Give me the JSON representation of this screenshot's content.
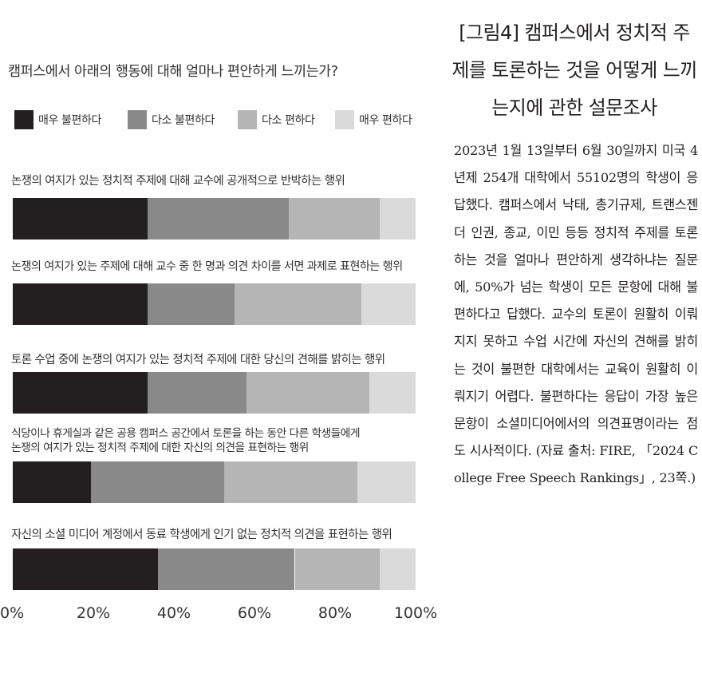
{
  "chart_data": {
    "type": "bar",
    "orientation": "horizontal",
    "stacked": true,
    "title": "캠퍼스에서 아래의 행동에 대해 얼마나 편안하게 느끼는가?",
    "xlim": [
      0,
      100
    ],
    "x_ticks": [
      "0%",
      "20%",
      "40%",
      "60%",
      "80%",
      "100%"
    ],
    "grid": false,
    "legend_position": "top",
    "categories": [
      "논쟁의 여지가 있는 정치적 주제에 대해 교수에 공개적으로 반박하는 행위",
      "논쟁의 여지가 있는 주제에 대해 교수 중 한 명과 의견 차이를 서면 과제로 표현하는 행위",
      "토론 수업 중에 논쟁의 여지가 있는 정치적 주제에 대한 당신의 견해를 밝히는 행위",
      "식당이나 휴게실과 같은 공용 캠퍼스 공간에서 토론을 하는 동안 다른 학생들에게 논쟁의 여지가 있는 정치적 주제에 대한 자신의 의견을 표현하는 행위",
      "자신의 소셜 미디어 계정에서 동료 학생에게 인기 없는 정치적 의견을 표현하는 행위"
    ],
    "series": [
      {
        "name": "매우 불편하다",
        "color": "#231f20",
        "values": [
          33.5,
          33.5,
          33.5,
          19.5,
          36
        ]
      },
      {
        "name": "다소 불편하다",
        "color": "#898989",
        "values": [
          35,
          21.5,
          24.5,
          33,
          34
        ]
      },
      {
        "name": "다소 편하다",
        "color": "#b5b5b5",
        "values": [
          22.5,
          31.5,
          30.5,
          33,
          21
        ]
      },
      {
        "name": "매우 편하다",
        "color": "#dadada",
        "values": [
          9,
          13.5,
          11.5,
          14.5,
          9
        ]
      }
    ]
  },
  "side": {
    "title": "[그림4] 캠퍼스에서 정치적 주제를 토론하는 것을 어떻게 느끼는지에 관한 설문조사",
    "body": "2023년 1월 13일부터 6월 30일까지 미국 4년제 254개 대학에서 55102명의 학생이 응답했다. 캠퍼스에서 낙태, 총기규제, 트랜스젠더 인권, 종교, 이민 등등 정치적 주제를 토론하는 것을 얼마나 편안하게 생각하냐는 질문에, 50%가 넘는 학생이 모든 문항에 대해 불편하다고 답했다. 교수의 토론이 원활히 이뤄지지 못하고 수업 시간에 자신의 견해를 밝히는 것이 불편한 대학에서는 교육이 원활히 이뤄지기 어렵다. 불편하다는 응답이 가장 높은 문항이 소셜미디어에서의 의견표명이라는 점도 시사적이다. (자료 출처: FIRE, 「2024 College Free Speech Rankings」, 23쪽.)"
  }
}
